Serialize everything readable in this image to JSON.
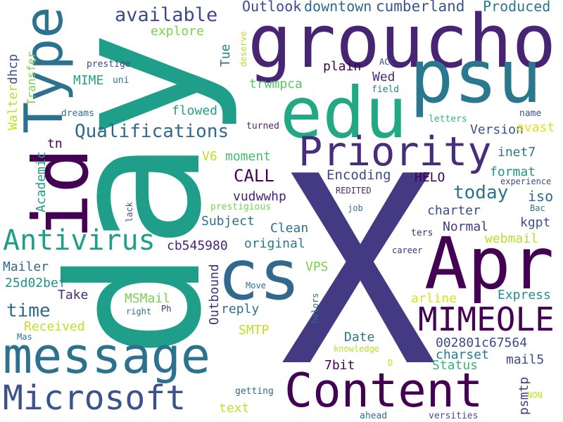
{
  "words": [
    "X",
    "day",
    "groucho",
    "psu",
    "edu",
    "Type",
    "id",
    "Priority",
    "Qualifications",
    "available",
    "Outlook",
    "downtown",
    "cumberland",
    "Produced",
    "explore",
    "Tue",
    "deserve",
    "Walter",
    "dhcp",
    "Transfer",
    "prestige",
    "MIME",
    "uni",
    "plain",
    "ACC",
    "Wed",
    "trwmpca",
    "field",
    "dreams",
    "flowed",
    "letters",
    "name",
    "turned",
    "Version",
    "avast",
    "tn",
    "V6",
    "moment",
    "inet7",
    "Academic",
    "CALL",
    "Encoding",
    "HELO",
    "format",
    "REDITED",
    "experience",
    "today",
    "iso",
    "vudwwhp",
    "lack",
    "prestigious",
    "job",
    "Bac",
    "charter",
    "kgpt",
    "Subject",
    "Clean",
    "Normal",
    "ters",
    "webmail",
    "Antivirus",
    "cb545980",
    "original",
    "MIMEOLE",
    "Apr",
    "career",
    "cs",
    "Outbound",
    "Mailer",
    "VPS",
    "25d02bef",
    "Take",
    "Move",
    "MSMail",
    "arline",
    "Express",
    "time",
    "right",
    "Ph",
    "reply",
    "helors",
    "Received",
    "SMTP",
    "Mas",
    "Date",
    "002801c67564",
    "message",
    "knowledge",
    "charset",
    "mail5",
    "7bit",
    "D",
    "Status",
    "Content",
    "psmtp",
    "Microsoft",
    "getting",
    "NON",
    "text",
    "ahead",
    "versities"
  ]
}
